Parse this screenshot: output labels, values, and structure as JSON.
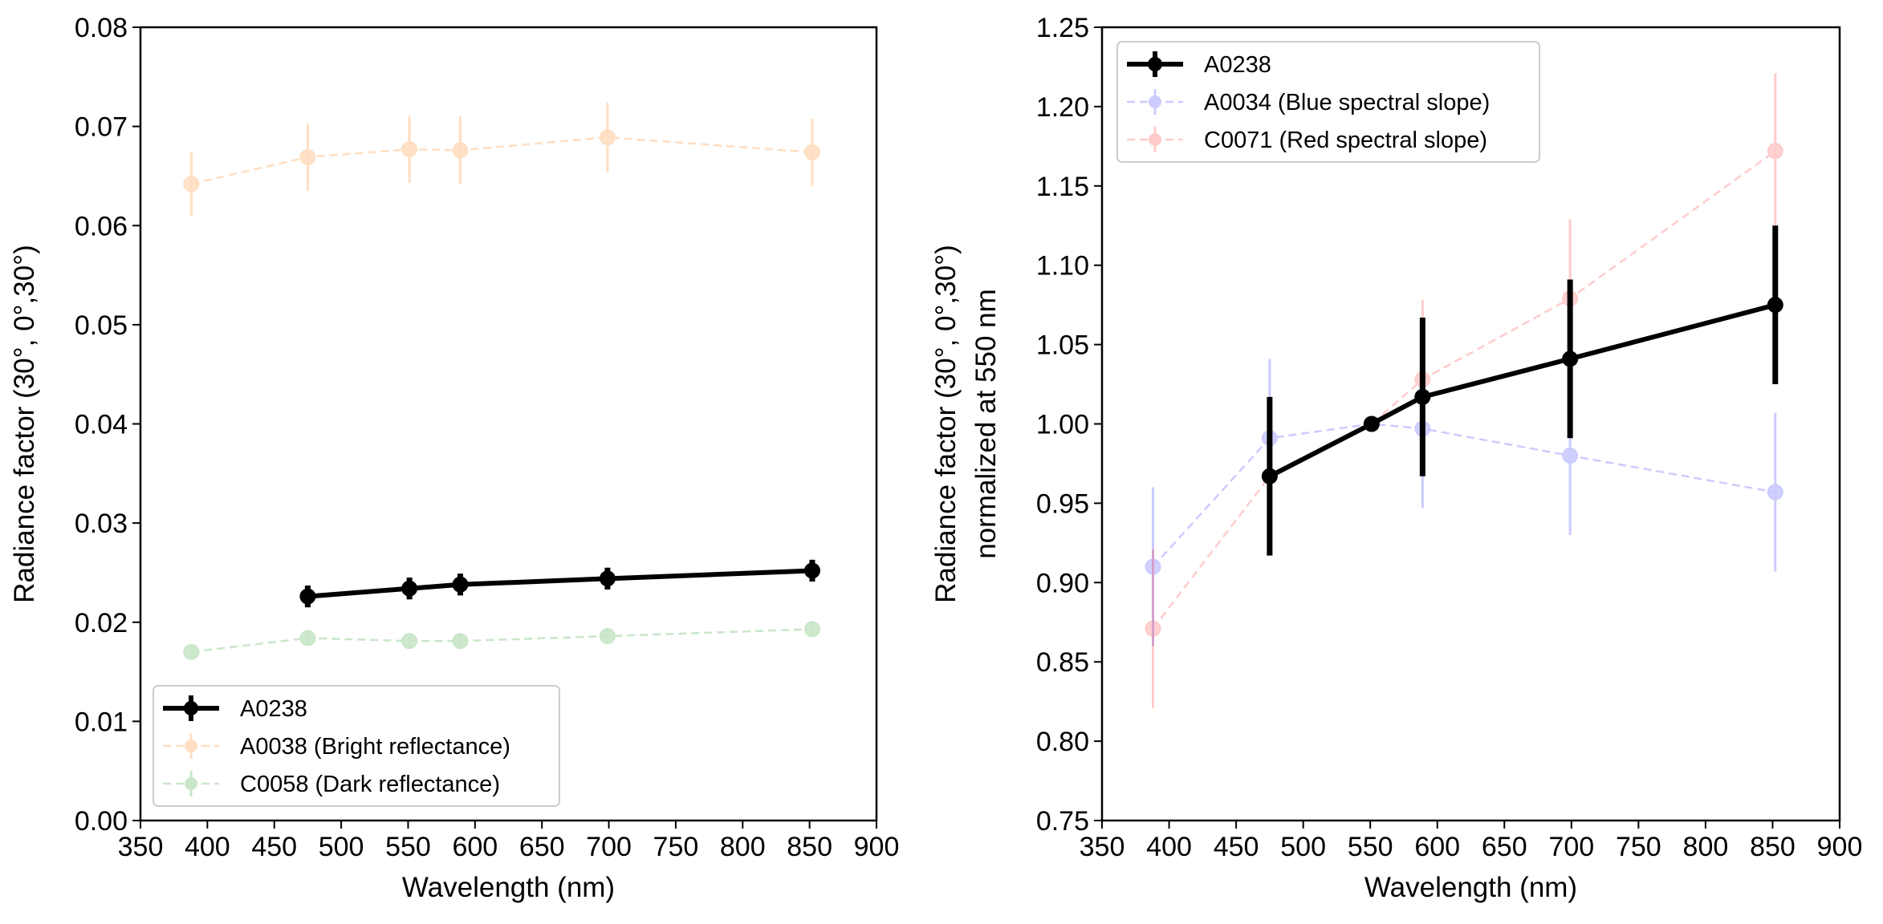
{
  "chart_data": [
    {
      "type": "line",
      "xlabel": "Wavelength (nm)",
      "ylabel": "Radiance factor (30°, 0°,30°)",
      "xlim": [
        350,
        900
      ],
      "ylim": [
        0.0,
        0.08
      ],
      "x_ticks": [
        350,
        400,
        450,
        500,
        550,
        600,
        650,
        700,
        750,
        800,
        850,
        900
      ],
      "y_ticks": [
        0.0,
        0.01,
        0.02,
        0.03,
        0.04,
        0.05,
        0.06,
        0.07,
        0.08
      ],
      "y_tick_decimals": 2,
      "grid": false,
      "legend_position": "lower-left",
      "series": [
        {
          "name": "A0238",
          "color": "#000000",
          "style": "solid",
          "alpha": 1.0,
          "x": [
            475,
            551,
            589,
            699,
            852
          ],
          "y": [
            0.0226,
            0.0234,
            0.0238,
            0.0244,
            0.0252
          ],
          "yerr": [
            0.0011,
            0.0011,
            0.0011,
            0.0011,
            0.0011
          ]
        },
        {
          "name": "A0038 (Bright reflectance)",
          "color": "#ff7f0e",
          "style": "dashed",
          "alpha": 0.25,
          "x": [
            388,
            475,
            551,
            589,
            699,
            852
          ],
          "y": [
            0.0642,
            0.0669,
            0.0677,
            0.0676,
            0.0689,
            0.0674
          ],
          "yerr": [
            0.0032,
            0.0034,
            0.0034,
            0.0034,
            0.0035,
            0.0034
          ]
        },
        {
          "name": "C0058 (Dark reflectance)",
          "color": "#2ca02c",
          "style": "dashed",
          "alpha": 0.25,
          "x": [
            388,
            475,
            551,
            589,
            699,
            852
          ],
          "y": [
            0.017,
            0.0184,
            0.0181,
            0.0181,
            0.0186,
            0.0193
          ],
          "yerr": [
            0.0006,
            0.0007,
            0.0007,
            0.0007,
            0.0007,
            0.0007
          ]
        }
      ]
    },
    {
      "type": "line",
      "xlabel": "Wavelength (nm)",
      "ylabel": "Radiance factor (30°, 0°,30°)",
      "ylabel_line2": "normalized at 550 nm",
      "xlim": [
        350,
        900
      ],
      "ylim": [
        0.75,
        1.25
      ],
      "x_ticks": [
        350,
        400,
        450,
        500,
        550,
        600,
        650,
        700,
        750,
        800,
        850,
        900
      ],
      "y_ticks": [
        0.75,
        0.8,
        0.85,
        0.9,
        0.95,
        1.0,
        1.05,
        1.1,
        1.15,
        1.2,
        1.25
      ],
      "y_tick_decimals": 2,
      "grid": false,
      "legend_position": "upper-left",
      "series": [
        {
          "name": "A0238",
          "color": "#000000",
          "style": "solid",
          "alpha": 1.0,
          "x": [
            475,
            551,
            589,
            699,
            852
          ],
          "y": [
            0.967,
            1.0,
            1.017,
            1.041,
            1.075
          ],
          "yerr": [
            0.05,
            0.0,
            0.05,
            0.05,
            0.05
          ]
        },
        {
          "name": "A0034 (Blue spectral slope)",
          "color": "#0000ff",
          "style": "dashed",
          "alpha": 0.2,
          "x": [
            388,
            475,
            551,
            589,
            699,
            852
          ],
          "y": [
            0.91,
            0.991,
            1.0,
            0.997,
            0.98,
            0.957
          ],
          "yerr": [
            0.05,
            0.05,
            0.0,
            0.05,
            0.05,
            0.05
          ]
        },
        {
          "name": "C0071 (Red spectral slope)",
          "color": "#ff0000",
          "style": "dashed",
          "alpha": 0.2,
          "x": [
            388,
            475,
            551,
            589,
            699,
            852
          ],
          "y": [
            0.871,
            0.967,
            1.0,
            1.028,
            1.079,
            1.172
          ],
          "yerr": [
            0.05,
            0.05,
            0.0,
            0.05,
            0.05,
            0.049
          ]
        }
      ]
    }
  ]
}
